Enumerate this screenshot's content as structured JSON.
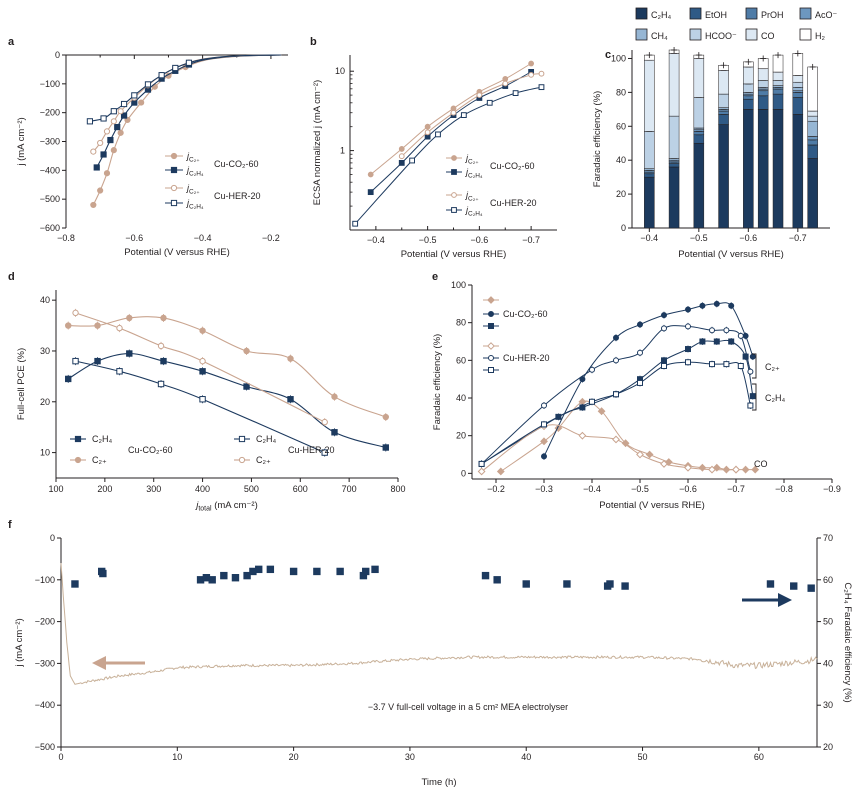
{
  "colors": {
    "navy": "#1d3a5f",
    "tan": "#c9a48f",
    "tanLight": "#d8bfae",
    "trace": "#c8b199",
    "axis": "#231f20",
    "arrowTan": "#c9a48f",
    "arrowNavy": "#1d3a5f",
    "stack": {
      "C2H4": "#1c3a5e",
      "EtOH": "#2f5a86",
      "PrOH": "#4f7ca7",
      "AcO": "#6d97bf",
      "CH4": "#96b6d4",
      "HCOO": "#bcd1e5",
      "CO": "#dce8f3",
      "H2": "#ffffff"
    }
  },
  "chart_data": [
    {
      "panel": "a",
      "type": "line",
      "xlabel": "Potential (V versus RHE)",
      "ylabel": "j (mA cm⁻²)",
      "xlim": [
        -0.8,
        -0.15
      ],
      "ylim": [
        -600,
        0
      ],
      "xticks": [
        "−0.8",
        "−0.6",
        "−0.4",
        "−0.2"
      ],
      "yticks": [
        "0",
        "−100",
        "−200",
        "−300",
        "−400",
        "−500",
        "−600"
      ],
      "legend": {
        "group1": "Cu-CO₂-60",
        "group2": "Cu-HER-20",
        "jC2": "j",
        "jC2sub": "C₂₊",
        "jC2H4": "j",
        "jC2H4sub": "C₂H₄"
      },
      "series": [
        {
          "name": "jC2+ Cu-CO2-60",
          "style": "tan-filled",
          "x": [
            -0.72,
            -0.7,
            -0.68,
            -0.66,
            -0.64,
            -0.62,
            -0.58,
            -0.54,
            -0.5,
            -0.45,
            -0.4,
            -0.35,
            -0.3,
            -0.25,
            -0.2,
            -0.17
          ],
          "y": [
            -520,
            -470,
            -410,
            -330,
            -270,
            -225,
            -165,
            -110,
            -72,
            -42,
            -20,
            -10,
            -5,
            -2,
            -1,
            0
          ]
        },
        {
          "name": "jC2H4 Cu-CO2-60",
          "style": "navy-filled",
          "x": [
            -0.71,
            -0.69,
            -0.67,
            -0.65,
            -0.63,
            -0.6,
            -0.56,
            -0.52,
            -0.48,
            -0.44,
            -0.4,
            -0.35,
            -0.3,
            -0.25,
            -0.2,
            -0.17
          ],
          "y": [
            -390,
            -345,
            -295,
            -250,
            -210,
            -165,
            -120,
            -82,
            -55,
            -33,
            -18,
            -9,
            -4,
            -2,
            -1,
            0
          ]
        },
        {
          "name": "jC2+ Cu-HER-20",
          "style": "tan-open",
          "x": [
            -0.72,
            -0.7,
            -0.68,
            -0.66,
            -0.64,
            -0.6,
            -0.56,
            -0.52,
            -0.48,
            -0.44,
            -0.4,
            -0.35,
            -0.3,
            -0.25,
            -0.2,
            -0.17
          ],
          "y": [
            -335,
            -305,
            -265,
            -230,
            -195,
            -148,
            -105,
            -70,
            -45,
            -26,
            -14,
            -7,
            -3,
            -1,
            0,
            0
          ]
        },
        {
          "name": "jC2H4 Cu-HER-20",
          "style": "navy-open",
          "x": [
            -0.73,
            -0.69,
            -0.66,
            -0.63,
            -0.6,
            -0.56,
            -0.52,
            -0.48,
            -0.44,
            -0.4,
            -0.35,
            -0.3,
            -0.25,
            -0.2,
            -0.17
          ],
          "y": [
            -230,
            -220,
            -195,
            -170,
            -140,
            -102,
            -70,
            -45,
            -27,
            -15,
            -7,
            -3,
            -1,
            0,
            0
          ]
        }
      ]
    },
    {
      "panel": "b",
      "type": "line",
      "xlabel": "Potential (V versus RHE)",
      "ylabel": "ECSA normalized j (mA cm⁻²)",
      "yscale": "log",
      "xlim": [
        -0.35,
        -0.75
      ],
      "ylim": [
        0.1,
        16
      ],
      "xticks": [
        "−0.4",
        "−0.5",
        "−0.6",
        "−0.7"
      ],
      "yticks": [
        "1",
        "10"
      ],
      "legend": {
        "group1": "Cu-CO₂-60",
        "group2": "Cu-HER-20",
        "jC2": "j",
        "jC2sub": "C₂₊",
        "jC2H4": "j",
        "jC2H4sub": "C₂H₄"
      },
      "series": [
        {
          "name": "jC2+ Cu-CO2-60",
          "style": "tan-filled",
          "x": [
            -0.39,
            -0.45,
            -0.5,
            -0.55,
            -0.6,
            -0.65,
            -0.7
          ],
          "y": [
            0.5,
            1.05,
            2.0,
            3.4,
            5.5,
            8.0,
            12.5
          ]
        },
        {
          "name": "jC2H4 Cu-CO2-60",
          "style": "navy-filled",
          "x": [
            -0.39,
            -0.45,
            -0.5,
            -0.55,
            -0.6,
            -0.65,
            -0.7
          ],
          "y": [
            0.3,
            0.7,
            1.5,
            2.8,
            4.6,
            6.5,
            9.8
          ]
        },
        {
          "name": "jC2+ Cu-HER-20",
          "style": "tan-open",
          "x": [
            -0.45,
            -0.5,
            -0.55,
            -0.6,
            -0.65,
            -0.7,
            -0.72
          ],
          "y": [
            0.85,
            1.7,
            3.0,
            5.0,
            7.0,
            9.0,
            9.3
          ]
        },
        {
          "name": "jC2H4 Cu-HER-20",
          "style": "navy-open",
          "x": [
            -0.36,
            -0.47,
            -0.52,
            -0.57,
            -0.62,
            -0.67,
            -0.72
          ],
          "y": [
            0.12,
            0.75,
            1.6,
            2.8,
            4.0,
            5.3,
            6.3
          ]
        }
      ]
    },
    {
      "panel": "c",
      "type": "bar",
      "stacked": true,
      "xlabel": "Potential (V versus RHE)",
      "ylabel": "Faradaic efficiency (%)",
      "ylim": [
        0,
        105
      ],
      "yticks": [
        "0",
        "20",
        "40",
        "60",
        "80",
        "100"
      ],
      "xticks": [
        "−0.4",
        "−0.5",
        "−0.6",
        "−0.7"
      ],
      "legend": [
        {
          "key": "C2H4",
          "label": "C₂H₄"
        },
        {
          "key": "EtOH",
          "label": "EtOH"
        },
        {
          "key": "PrOH",
          "label": "PrOH"
        },
        {
          "key": "AcO",
          "label": "AcO⁻"
        },
        {
          "key": "CH4",
          "label": "CH₄"
        },
        {
          "key": "HCOO",
          "label": "HCOO⁻"
        },
        {
          "key": "CO",
          "label": "CO"
        },
        {
          "key": "H2",
          "label": "H₂"
        }
      ],
      "potentials": [
        -0.4,
        -0.45,
        -0.5,
        -0.55,
        -0.6,
        -0.63,
        -0.66,
        -0.7,
        -0.73
      ],
      "series": [
        {
          "name": "C2H4",
          "values": [
            30,
            36,
            50,
            61,
            70,
            70,
            70,
            67,
            41
          ]
        },
        {
          "name": "EtOH",
          "values": [
            2,
            2,
            5,
            6,
            6,
            8,
            9,
            10,
            8
          ]
        },
        {
          "name": "PrOH",
          "values": [
            1,
            1,
            2,
            2,
            2,
            3,
            3,
            3,
            3
          ]
        },
        {
          "name": "AcO",
          "values": [
            1,
            1,
            1,
            1,
            1,
            1,
            1,
            1,
            2
          ]
        },
        {
          "name": "CH4",
          "values": [
            1,
            1,
            1,
            1,
            1,
            1,
            1,
            2,
            9
          ]
        },
        {
          "name": "HCOO",
          "values": [
            22,
            25,
            18,
            8,
            5,
            4,
            3,
            3,
            3
          ]
        },
        {
          "name": "CO",
          "values": [
            42,
            37,
            23,
            14,
            10,
            7,
            5,
            4,
            3
          ]
        },
        {
          "name": "H2",
          "values": [
            3,
            2,
            2,
            3,
            3,
            6,
            10,
            13,
            26
          ]
        }
      ]
    },
    {
      "panel": "d",
      "type": "line",
      "xlabel": "j_total (mA cm⁻²)",
      "xlabelMain": "j",
      "xlabelSub": "total",
      "xlabelUnit": " (mA cm⁻²)",
      "ylabel": "Full-cell PCE (%)",
      "xlim": [
        100,
        800
      ],
      "ylim": [
        5,
        42
      ],
      "xticks": [
        "100",
        "200",
        "300",
        "400",
        "500",
        "600",
        "700",
        "800"
      ],
      "yticks": [
        "10",
        "20",
        "30",
        "40"
      ],
      "legend": {
        "c2h4": "C₂H₄",
        "c2": "C₂₊",
        "group1": "Cu-CO₂-60",
        "group2": "Cu-HER-20"
      },
      "series": [
        {
          "name": "C2H4 Cu-CO2-60",
          "style": "navy-filled",
          "x": [
            125,
            185,
            250,
            320,
            400,
            490,
            580,
            670,
            775
          ],
          "y": [
            24.5,
            28,
            29.5,
            28,
            26,
            23,
            20.5,
            14,
            11
          ]
        },
        {
          "name": "C2+ Cu-CO2-60",
          "style": "tan-filled",
          "x": [
            125,
            185,
            250,
            320,
            400,
            490,
            580,
            670,
            775
          ],
          "y": [
            35,
            35,
            36.5,
            36.5,
            34,
            30,
            28.5,
            21,
            17
          ]
        },
        {
          "name": "C2H4 Cu-HER-20",
          "style": "navy-open",
          "x": [
            140,
            230,
            315,
            400,
            650
          ],
          "y": [
            28,
            26,
            23.5,
            20.5,
            10
          ]
        },
        {
          "name": "C2+ Cu-HER-20",
          "style": "tan-open",
          "x": [
            140,
            230,
            315,
            400,
            650
          ],
          "y": [
            37.5,
            34.5,
            31,
            28,
            16
          ]
        }
      ]
    },
    {
      "panel": "e",
      "type": "line",
      "xlabel": "Potential (V versus RHE)",
      "ylabel": "Faradaic efficiency (%)",
      "xlim": [
        -0.15,
        -0.9
      ],
      "ylim": [
        -3,
        100
      ],
      "xticks": [
        "−0.2",
        "−0.3",
        "−0.4",
        "−0.5",
        "−0.6",
        "−0.7",
        "−0.8",
        "−0.9"
      ],
      "yticks": [
        "0",
        "20",
        "40",
        "60",
        "80",
        "100"
      ],
      "legend": {
        "group1": "Cu-CO₂-60",
        "group2": "Cu-HER-20"
      },
      "annotations": {
        "c2": "C₂₊",
        "c2h4": "C₂H₄",
        "co": "CO"
      },
      "series": [
        {
          "name": "CO Cu-CO2-60",
          "style": "tan-diamond-filled",
          "x": [
            -0.21,
            -0.3,
            -0.33,
            -0.38,
            -0.42,
            -0.47,
            -0.52,
            -0.56,
            -0.6,
            -0.63,
            -0.66,
            -0.68,
            -0.7,
            -0.72,
            -0.74
          ],
          "y": [
            1,
            17,
            24,
            38,
            33,
            16,
            10,
            6,
            4,
            3,
            3,
            2,
            2,
            2,
            2
          ]
        },
        {
          "name": "C2+ Cu-CO2-60",
          "style": "navy-circle-filled",
          "x": [
            -0.3,
            -0.38,
            -0.45,
            -0.5,
            -0.55,
            -0.6,
            -0.63,
            -0.66,
            -0.69,
            -0.72,
            -0.735
          ],
          "y": [
            9,
            50,
            72,
            79,
            84,
            87,
            89,
            90,
            89,
            73,
            62
          ]
        },
        {
          "name": "C2H4 Cu-CO2-60",
          "style": "navy-square-filled",
          "x": [
            -0.17,
            -0.33,
            -0.38,
            -0.45,
            -0.5,
            -0.55,
            -0.6,
            -0.63,
            -0.66,
            -0.69,
            -0.72,
            -0.735
          ],
          "y": [
            5,
            30,
            35,
            42,
            50,
            60,
            66,
            70,
            70,
            70,
            62,
            41
          ]
        },
        {
          "name": "CO Cu-HER-20",
          "style": "tan-diamond-open",
          "x": [
            -0.17,
            -0.3,
            -0.38,
            -0.45,
            -0.5,
            -0.55,
            -0.6,
            -0.65,
            -0.7
          ],
          "y": [
            1,
            25,
            20,
            18,
            10,
            5,
            3,
            2,
            2
          ]
        },
        {
          "name": "C2+ Cu-HER-20",
          "style": "navy-circle-open",
          "x": [
            -0.17,
            -0.3,
            -0.4,
            -0.45,
            -0.5,
            -0.55,
            -0.6,
            -0.65,
            -0.68,
            -0.71,
            -0.73
          ],
          "y": [
            5,
            36,
            55,
            60,
            64,
            77,
            78,
            76,
            76,
            73,
            54
          ]
        },
        {
          "name": "C2H4 Cu-HER-20",
          "style": "navy-square-open",
          "x": [
            -0.17,
            -0.3,
            -0.4,
            -0.45,
            -0.5,
            -0.55,
            -0.6,
            -0.65,
            -0.68,
            -0.71,
            -0.73
          ],
          "y": [
            5,
            26,
            38,
            42,
            48,
            57,
            59,
            58,
            58,
            57,
            36
          ]
        }
      ]
    },
    {
      "panel": "f",
      "type": "line",
      "xlabel": "Time (h)",
      "ylabel": "j (mA cm⁻²)",
      "ylabel2": "C₂H₄ Faradaic efficiency (%)",
      "xlim": [
        0,
        65
      ],
      "ylim": [
        -500,
        0
      ],
      "y2lim": [
        20,
        70
      ],
      "xticks": [
        "0",
        "10",
        "20",
        "30",
        "40",
        "50",
        "60"
      ],
      "yticks": [
        "0",
        "−100",
        "−200",
        "−300",
        "−400",
        "−500"
      ],
      "y2ticks": [
        "20",
        "30",
        "40",
        "50",
        "60",
        "70"
      ],
      "annotation": "−3.7 V full-cell voltage in a 5 cm² MEA electrolyser",
      "current_trace": {
        "x": [
          0,
          0.2,
          0.5,
          0.8,
          1.2,
          2,
          3,
          5,
          8,
          10,
          15,
          20,
          25,
          30,
          35,
          40,
          45,
          50,
          55,
          58,
          60,
          62,
          64,
          65
        ],
        "y": [
          -60,
          -140,
          -250,
          -330,
          -350,
          -345,
          -340,
          -330,
          -320,
          -310,
          -305,
          -305,
          -300,
          -290,
          -285,
          -285,
          -285,
          -285,
          -290,
          -305,
          -305,
          -300,
          -295,
          -290
        ]
      },
      "fe_points": {
        "x": [
          1.2,
          3.5,
          3.6,
          12,
          12.5,
          13,
          14,
          15,
          16,
          16.5,
          17,
          18,
          20,
          22,
          24,
          26,
          26.2,
          27,
          36.5,
          37.5,
          40,
          43.5,
          47,
          47.2,
          48.5,
          61,
          63,
          64.5
        ],
        "y": [
          59,
          62,
          61.5,
          60,
          60.5,
          60,
          61,
          60.5,
          61,
          62,
          62.5,
          62.5,
          62,
          62,
          62,
          61,
          62,
          62.5,
          61,
          60,
          59,
          59,
          58.5,
          59,
          58.5,
          59,
          58.5,
          58
        ]
      }
    }
  ]
}
